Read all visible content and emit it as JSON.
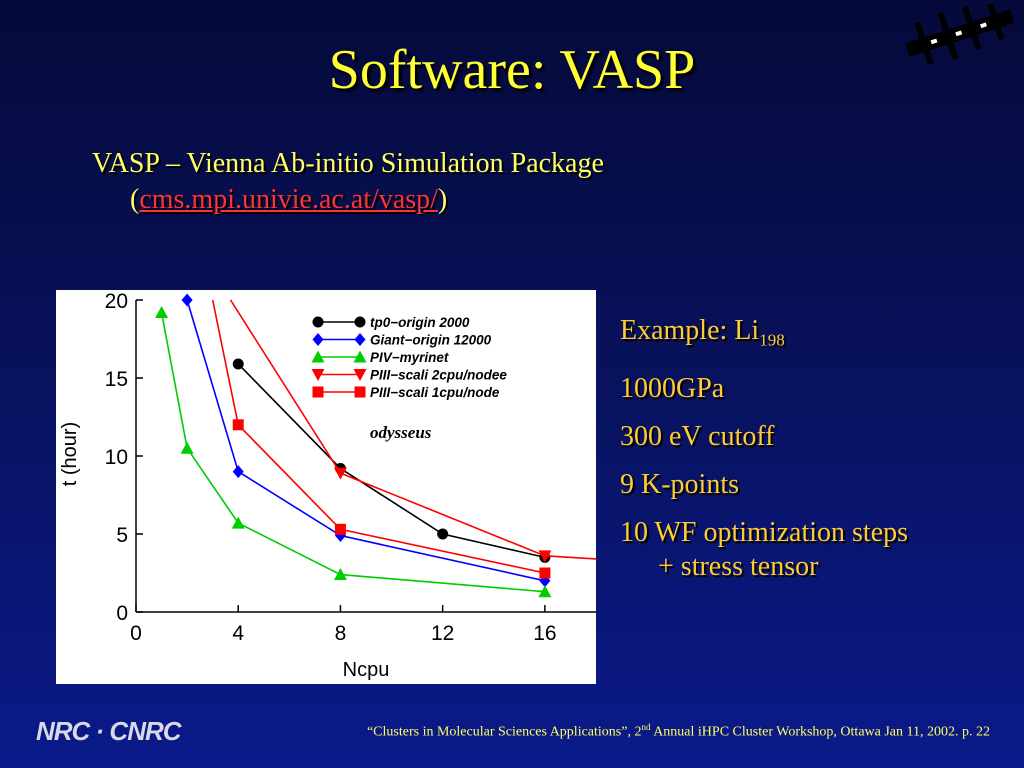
{
  "slide": {
    "title": "Software: VASP",
    "subtitle_line1": "VASP – Vienna Ab-initio Simulation Package",
    "subtitle_open": "(",
    "subtitle_link": "cms.mpi.univie.ac.at/vasp/",
    "subtitle_close": ")"
  },
  "bullets": {
    "example_prefix": "Example: Li",
    "example_sub": "198",
    "pressure": "1000GPa",
    "cutoff": "300 eV cutoff",
    "kpoints": "9 K-points",
    "wf_line1": "10 WF optimization steps",
    "wf_line2": "+ stress tensor"
  },
  "footer": {
    "logo": "NRC · CNRC",
    "cite_pre": "“Clusters in Molecular Sciences Applications”, 2",
    "cite_sup": "nd",
    "cite_post": " Annual iHPC Cluster Workshop, Ottawa Jan 11, 2002.   p. 22"
  },
  "colors": {
    "title": "#ffff33",
    "bullets": "#ffcc33",
    "link": "#ff3333"
  },
  "chart_data": {
    "type": "line",
    "xlabel": "Ncpu",
    "ylabel": "t (hour)",
    "xlim": [
      0,
      18
    ],
    "ylim": [
      0,
      20
    ],
    "xticks": [
      "0",
      "4",
      "8",
      "12",
      "16"
    ],
    "yticks": [
      "0",
      "5",
      "10",
      "15",
      "20"
    ],
    "annotation": "odysseus",
    "legend_position": "top-right",
    "series": [
      {
        "name": "tp0−origin 2000",
        "marker": "circle",
        "color": "#000000",
        "x": [
          4,
          8,
          12,
          16
        ],
        "y": [
          15.9,
          9.2,
          5.0,
          3.5
        ]
      },
      {
        "name": "Giant−origin 12000",
        "marker": "diamond",
        "color": "#0000ff",
        "x": [
          2,
          4,
          8,
          16
        ],
        "y": [
          20.0,
          9.0,
          4.9,
          2.0
        ]
      },
      {
        "name": "PIV−myrinet",
        "marker": "triangle-up",
        "color": "#00cc00",
        "x": [
          1,
          2,
          4,
          8,
          16
        ],
        "y": [
          19.2,
          10.5,
          5.7,
          2.4,
          1.3
        ]
      },
      {
        "name": "PIII−scali 2cpu/nodee",
        "marker": "triangle-down",
        "color": "#ff0000",
        "x": [
          3.7,
          8,
          16,
          18
        ],
        "y": [
          20.0,
          8.9,
          3.6,
          3.4
        ]
      },
      {
        "name": "PIII−scali 1cpu/node",
        "marker": "square",
        "color": "#ff0000",
        "x": [
          3,
          4,
          8,
          16
        ],
        "y": [
          20.0,
          12.0,
          5.3,
          2.5
        ]
      }
    ]
  }
}
